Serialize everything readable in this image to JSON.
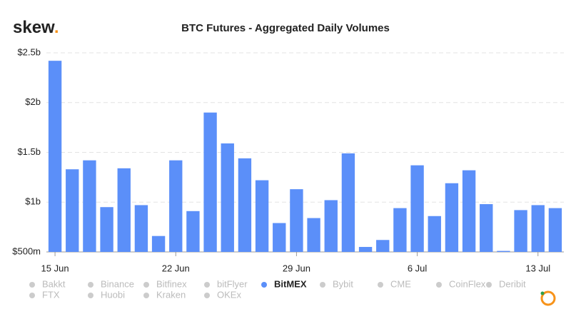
{
  "logo": "skew",
  "logo_dot": ".",
  "chart_data": {
    "type": "bar",
    "title": "BTC Futures - Aggregated Daily Volumes",
    "categories": [
      "15 Jun",
      null,
      null,
      null,
      null,
      null,
      null,
      "22 Jun",
      null,
      null,
      null,
      null,
      null,
      null,
      "29 Jun",
      null,
      null,
      null,
      null,
      null,
      null,
      "6 Jul",
      null,
      null,
      null,
      null,
      null,
      null,
      "13 Jul",
      null
    ],
    "series": [
      {
        "name": "Bakkt",
        "visible": false
      },
      {
        "name": "Binance",
        "visible": false
      },
      {
        "name": "Bitfinex",
        "visible": false
      },
      {
        "name": "bitFlyer",
        "visible": false
      },
      {
        "name": "BitMEX",
        "visible": true,
        "color": "#5b8ff9",
        "values": [
          2.42,
          1.33,
          1.42,
          0.95,
          1.34,
          0.97,
          0.66,
          1.42,
          0.91,
          1.9,
          1.59,
          1.44,
          1.22,
          0.79,
          1.13,
          0.84,
          1.02,
          1.49,
          0.55,
          0.62,
          0.94,
          1.37,
          0.86,
          1.19,
          1.32,
          0.98,
          0.51,
          0.92,
          0.97,
          0.94
        ]
      },
      {
        "name": "Bybit",
        "visible": false
      },
      {
        "name": "CME",
        "visible": false
      },
      {
        "name": "CoinFlex",
        "visible": false
      },
      {
        "name": "Deribit",
        "visible": false
      },
      {
        "name": "FTX",
        "visible": false
      },
      {
        "name": "Huobi",
        "visible": false
      },
      {
        "name": "Kraken",
        "visible": false
      },
      {
        "name": "OKEx",
        "visible": false
      }
    ],
    "ylim": [
      0.5,
      2.5
    ],
    "yticks": [
      {
        "value": 0.5,
        "label": "$500m"
      },
      {
        "value": 1,
        "label": "$1b"
      },
      {
        "value": 1.5,
        "label": "$1.5b"
      },
      {
        "value": 2,
        "label": "$2b"
      },
      {
        "value": 2.5,
        "label": "$2.5b"
      }
    ],
    "grid": true
  }
}
